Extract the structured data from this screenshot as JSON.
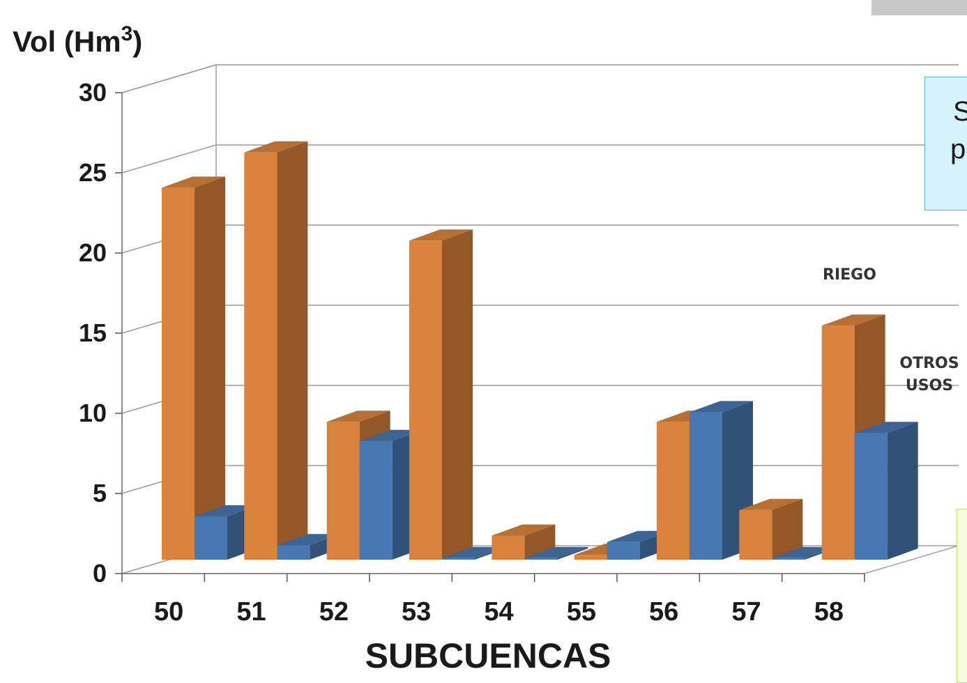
{
  "chart_data": {
    "type": "bar",
    "title": "",
    "ylabel": "Vol (Hm3)",
    "ylabel_base": "Vol (Hm",
    "ylabel_sup": "3",
    "ylabel_close": ")",
    "xlabel": "SUBCUENCAS",
    "categories": [
      "50",
      "51",
      "52",
      "53",
      "54",
      "55",
      "56",
      "57",
      "58"
    ],
    "series": [
      {
        "name": "RIEGO",
        "color": "#d9823b",
        "values": [
          23.2,
          25.4,
          8.6,
          19.9,
          1.5,
          0.3,
          8.6,
          3.1,
          14.6
        ]
      },
      {
        "name": "OTROS USOS",
        "color": "#4677b0",
        "values": [
          2.7,
          0.9,
          7.4,
          0.1,
          0.1,
          1.1,
          9.2,
          0.1,
          7.9
        ]
      }
    ],
    "yticks": [
      "0",
      "5",
      "10",
      "15",
      "20",
      "25",
      "30"
    ],
    "ylim": [
      0,
      30
    ],
    "grid": true,
    "legend_position": "right"
  },
  "callout_text": {
    "line1": "S",
    "line2": "p"
  }
}
